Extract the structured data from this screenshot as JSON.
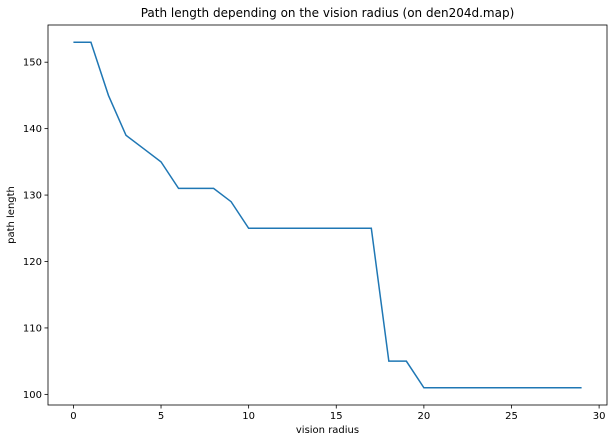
{
  "chart_data": {
    "type": "line",
    "title": "Path length depending on the vision radius (on den204d.map)",
    "xlabel": "vision radius",
    "ylabel": "path length",
    "xlim": [
      -1.45,
      30.45
    ],
    "ylim": [
      98.4,
      155.6
    ],
    "xticks": [
      0,
      5,
      10,
      15,
      20,
      25,
      30
    ],
    "yticks": [
      100,
      110,
      120,
      130,
      140,
      150
    ],
    "grid": false,
    "line_color": "#1f77b4",
    "series": [
      {
        "x": [
          0,
          1,
          2,
          3,
          4,
          5,
          6,
          7,
          8,
          9,
          10,
          11,
          12,
          13,
          14,
          15,
          16,
          17,
          18,
          19,
          20,
          21,
          22,
          23,
          24,
          25,
          26,
          27,
          28,
          29
        ],
        "values": [
          153,
          153,
          145,
          139,
          137,
          135,
          131,
          131,
          131,
          129,
          125,
          125,
          125,
          125,
          125,
          125,
          125,
          125,
          105,
          105,
          101,
          101,
          101,
          101,
          101,
          101,
          101,
          101,
          101,
          101
        ]
      }
    ]
  }
}
